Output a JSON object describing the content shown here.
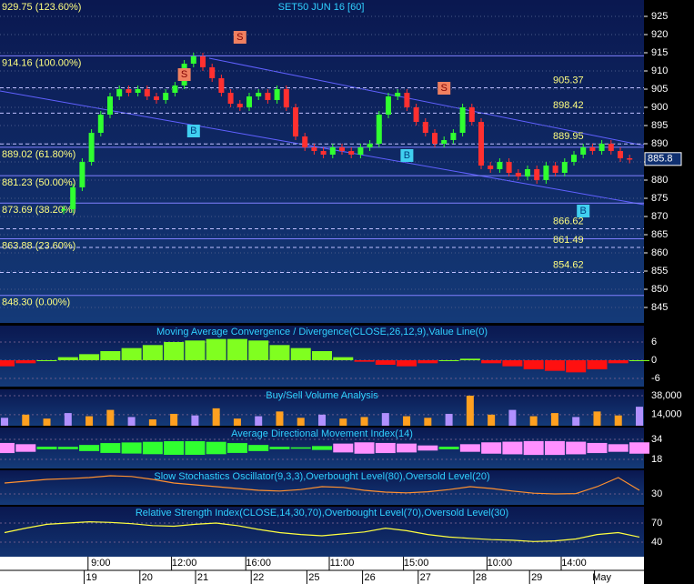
{
  "chart_data": {
    "type": "candlestick",
    "title": "SET50 JUN 16  [60]",
    "ylim": [
      840.75,
      929.5
    ],
    "yticks": [
      925,
      920,
      915,
      910,
      905,
      900,
      895,
      890,
      885,
      880,
      875,
      870,
      865,
      860,
      855,
      850,
      845
    ],
    "last_price": 885.8,
    "closes": [
      872,
      878,
      885,
      893,
      898,
      903,
      905,
      904,
      905,
      903,
      902,
      904,
      906,
      912,
      914,
      911,
      908,
      904,
      901,
      900,
      903,
      904,
      902,
      905,
      900,
      892,
      889,
      888,
      887,
      889,
      888,
      887,
      889,
      890,
      898,
      903,
      904,
      900,
      896,
      893,
      890,
      891,
      893,
      900,
      896,
      884,
      883,
      885,
      882,
      881,
      883,
      880,
      884,
      882,
      885,
      887,
      889,
      888,
      890,
      888,
      886,
      885.8
    ],
    "up_color": "#30ff30",
    "down_color": "#ff3030",
    "fib_levels": [
      {
        "value": 929.75,
        "label": "929.75 (123.60%)"
      },
      {
        "value": 914.16,
        "label": "914.16 (100.00%)"
      },
      {
        "value": 889.02,
        "label": "889.02 (61.80%)"
      },
      {
        "value": 881.23,
        "label": "881.23 (50.00%)"
      },
      {
        "value": 873.69,
        "label": "873.69 (38.20%)"
      },
      {
        "value": 863.88,
        "label": "863.88 (23.60%)"
      },
      {
        "value": 848.3,
        "label": "848.30 (0.00%)"
      }
    ],
    "price_labels": [
      905.37,
      898.42,
      889.95,
      866.62,
      861.49,
      854.62
    ],
    "signals": [
      {
        "label": "S",
        "index": 13,
        "price": 909
      },
      {
        "label": "S",
        "index": 19,
        "price": 919.25
      },
      {
        "label": "S",
        "index": 41,
        "price": 905.25
      },
      {
        "label": "B",
        "index": 14,
        "price": 893.5
      },
      {
        "label": "B",
        "index": 37,
        "price": 886.75
      },
      {
        "label": "B",
        "index": 56,
        "price": 871.5
      }
    ],
    "panels": [
      {
        "type": "histogram",
        "title": "Moving Average Convergence / Divergence(CLOSE,26,12,9),Value Line(0)",
        "ylim": [
          -8.7,
          11.4
        ],
        "yticks": [
          6,
          0,
          -6
        ],
        "values": [
          -2,
          -1,
          0,
          1,
          2,
          3,
          4,
          5,
          6,
          6.5,
          7,
          7,
          6.5,
          5,
          4,
          3,
          1,
          -0.5,
          -1.5,
          -2,
          -1,
          0,
          0.5,
          -1,
          -2,
          -3,
          -3.5,
          -4,
          -3,
          -1,
          0
        ]
      },
      {
        "type": "volume",
        "title": "Buy/Sell Volume Analysis",
        "ylim": [
          0,
          46000
        ],
        "yticks": [
          {
            "value": 38000,
            "label": "38,000"
          },
          {
            "value": 14000,
            "label": "14,000"
          }
        ],
        "values": [
          10000,
          14000,
          9000,
          16000,
          12000,
          20000,
          11000,
          8000,
          15000,
          13000,
          22000,
          9000,
          12000,
          18000,
          10000,
          14000,
          9000,
          11000,
          16000,
          12000,
          10000,
          15000,
          38000,
          14000,
          20000,
          12000,
          16000,
          11000,
          18000,
          13000,
          24000
        ]
      },
      {
        "type": "area",
        "title": "Average Directional Movement Index(14)",
        "ylim": [
          10.7,
          43.5
        ],
        "yticks": [
          34,
          18
        ],
        "values": [
          19,
          21,
          25,
          29,
          32,
          35,
          36,
          37,
          38,
          38,
          37,
          35,
          32,
          29,
          26,
          24,
          20,
          18,
          19,
          20,
          23,
          25,
          21,
          18,
          17,
          16,
          16,
          17,
          19,
          21,
          18
        ]
      },
      {
        "type": "line2",
        "title": "Slow Stochastics Oscillator(9,3,3),Overbought Level(80),Oversold Level(20)",
        "ylim": [
          0,
          95
        ],
        "yticks": [
          30
        ],
        "values": [
          60,
          65,
          70,
          72,
          75,
          80,
          78,
          70,
          60,
          55,
          50,
          45,
          40,
          38,
          42,
          50,
          48,
          40,
          35,
          33,
          36,
          42,
          50,
          45,
          38,
          32,
          30,
          31,
          50,
          75,
          40
        ]
      },
      {
        "type": "line",
        "title": "Relative Strength Index(CLOSE,14,30,70),Overbought Level(70),Oversold Level(30)",
        "ylim": [
          -1.4,
          95.7
        ],
        "yticks": [
          70,
          40
        ],
        "values": [
          55,
          62,
          68,
          70,
          72,
          71,
          69,
          66,
          65,
          68,
          70,
          66,
          60,
          55,
          52,
          50,
          53,
          56,
          62,
          58,
          52,
          48,
          46,
          44,
          43,
          41,
          42,
          45,
          52,
          55,
          48
        ]
      }
    ],
    "times": [
      {
        "index": 4,
        "label": "9:00"
      },
      {
        "index": 13,
        "label": "12:00"
      },
      {
        "index": 21,
        "label": "16:00"
      },
      {
        "index": 30,
        "label": "11:00"
      },
      {
        "index": 38,
        "label": "15:00"
      },
      {
        "index": 47,
        "label": "10:00"
      },
      {
        "index": 55,
        "label": "14:00"
      }
    ],
    "dates": [
      {
        "index": 3,
        "label": "19"
      },
      {
        "index": 9,
        "label": "20"
      },
      {
        "index": 15,
        "label": "21"
      },
      {
        "index": 21,
        "label": "22"
      },
      {
        "index": 27,
        "label": "25"
      },
      {
        "index": 33,
        "label": "26"
      },
      {
        "index": 39,
        "label": "27"
      },
      {
        "index": 45,
        "label": "28"
      },
      {
        "index": 51,
        "label": "29"
      },
      {
        "index": 58,
        "label": "May"
      }
    ]
  }
}
